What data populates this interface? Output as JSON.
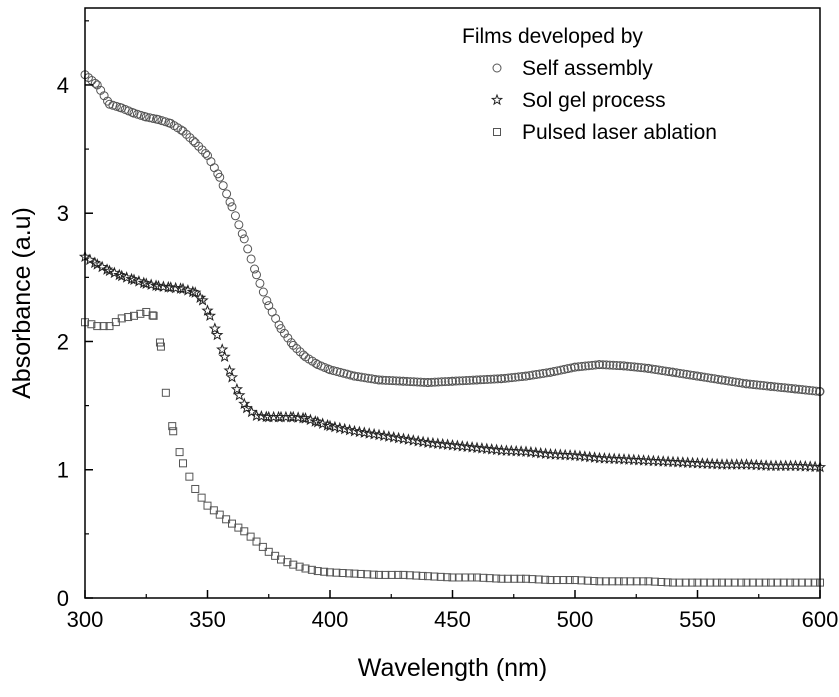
{
  "chart_data": {
    "type": "scatter",
    "title": "",
    "xlabel": "Wavelength (nm)",
    "ylabel": "Absorbance (a.u)",
    "xlim": [
      300,
      600
    ],
    "ylim": [
      0,
      4.6
    ],
    "xticks": [
      300,
      350,
      400,
      450,
      500,
      550,
      600
    ],
    "yticks": [
      0,
      1,
      2,
      3,
      4
    ],
    "grid": false,
    "legend": {
      "placement": "top-right",
      "title": "Films developed by",
      "entries": [
        "Self assembly",
        "Sol gel process",
        "Pulsed laser ablation"
      ]
    },
    "colors": {
      "marker": "#555555",
      "axis": "#000000"
    },
    "series": [
      {
        "name": "Self assembly",
        "marker": "circle",
        "x": [
          300,
          305,
          310,
          315,
          320,
          325,
          330,
          335,
          340,
          345,
          350,
          355,
          360,
          365,
          370,
          375,
          380,
          385,
          390,
          395,
          400,
          410,
          420,
          430,
          440,
          450,
          460,
          470,
          480,
          490,
          500,
          510,
          520,
          530,
          540,
          550,
          560,
          570,
          580,
          590,
          600
        ],
        "y": [
          4.08,
          4.0,
          3.85,
          3.82,
          3.78,
          3.75,
          3.73,
          3.7,
          3.64,
          3.55,
          3.45,
          3.28,
          3.05,
          2.8,
          2.52,
          2.28,
          2.1,
          1.97,
          1.88,
          1.82,
          1.78,
          1.73,
          1.7,
          1.69,
          1.68,
          1.69,
          1.7,
          1.71,
          1.73,
          1.76,
          1.8,
          1.82,
          1.81,
          1.79,
          1.76,
          1.73,
          1.7,
          1.67,
          1.65,
          1.63,
          1.61
        ]
      },
      {
        "name": "Sol gel process",
        "marker": "star",
        "x": [
          300,
          305,
          310,
          315,
          320,
          325,
          330,
          335,
          340,
          345,
          348,
          351,
          354,
          357,
          360,
          363,
          366,
          370,
          375,
          380,
          385,
          390,
          395,
          400,
          410,
          420,
          430,
          440,
          450,
          460,
          470,
          480,
          490,
          500,
          510,
          520,
          530,
          540,
          550,
          560,
          570,
          580,
          590,
          600
        ],
        "y": [
          2.66,
          2.6,
          2.55,
          2.51,
          2.48,
          2.45,
          2.43,
          2.42,
          2.41,
          2.38,
          2.32,
          2.2,
          2.05,
          1.88,
          1.72,
          1.58,
          1.48,
          1.42,
          1.41,
          1.41,
          1.41,
          1.4,
          1.37,
          1.34,
          1.3,
          1.27,
          1.24,
          1.21,
          1.19,
          1.17,
          1.15,
          1.14,
          1.12,
          1.11,
          1.09,
          1.08,
          1.07,
          1.06,
          1.05,
          1.04,
          1.04,
          1.03,
          1.03,
          1.02
        ]
      },
      {
        "name": "Pulsed laser ablation",
        "marker": "square",
        "x": [
          300,
          305,
          310,
          315,
          320,
          325,
          328,
          331,
          333,
          336,
          340,
          345,
          350,
          355,
          360,
          365,
          370,
          375,
          380,
          385,
          390,
          395,
          400,
          410,
          420,
          430,
          440,
          450,
          460,
          470,
          480,
          490,
          500,
          510,
          520,
          530,
          540,
          550,
          560,
          570,
          580,
          590,
          600
        ],
        "y": [
          2.15,
          2.12,
          2.12,
          2.18,
          2.2,
          2.23,
          2.2,
          1.96,
          1.6,
          1.3,
          1.05,
          0.85,
          0.72,
          0.65,
          0.58,
          0.52,
          0.44,
          0.36,
          0.3,
          0.26,
          0.23,
          0.21,
          0.2,
          0.19,
          0.18,
          0.18,
          0.17,
          0.16,
          0.16,
          0.15,
          0.15,
          0.14,
          0.14,
          0.13,
          0.13,
          0.13,
          0.12,
          0.12,
          0.12,
          0.12,
          0.12,
          0.12,
          0.12
        ]
      }
    ]
  }
}
